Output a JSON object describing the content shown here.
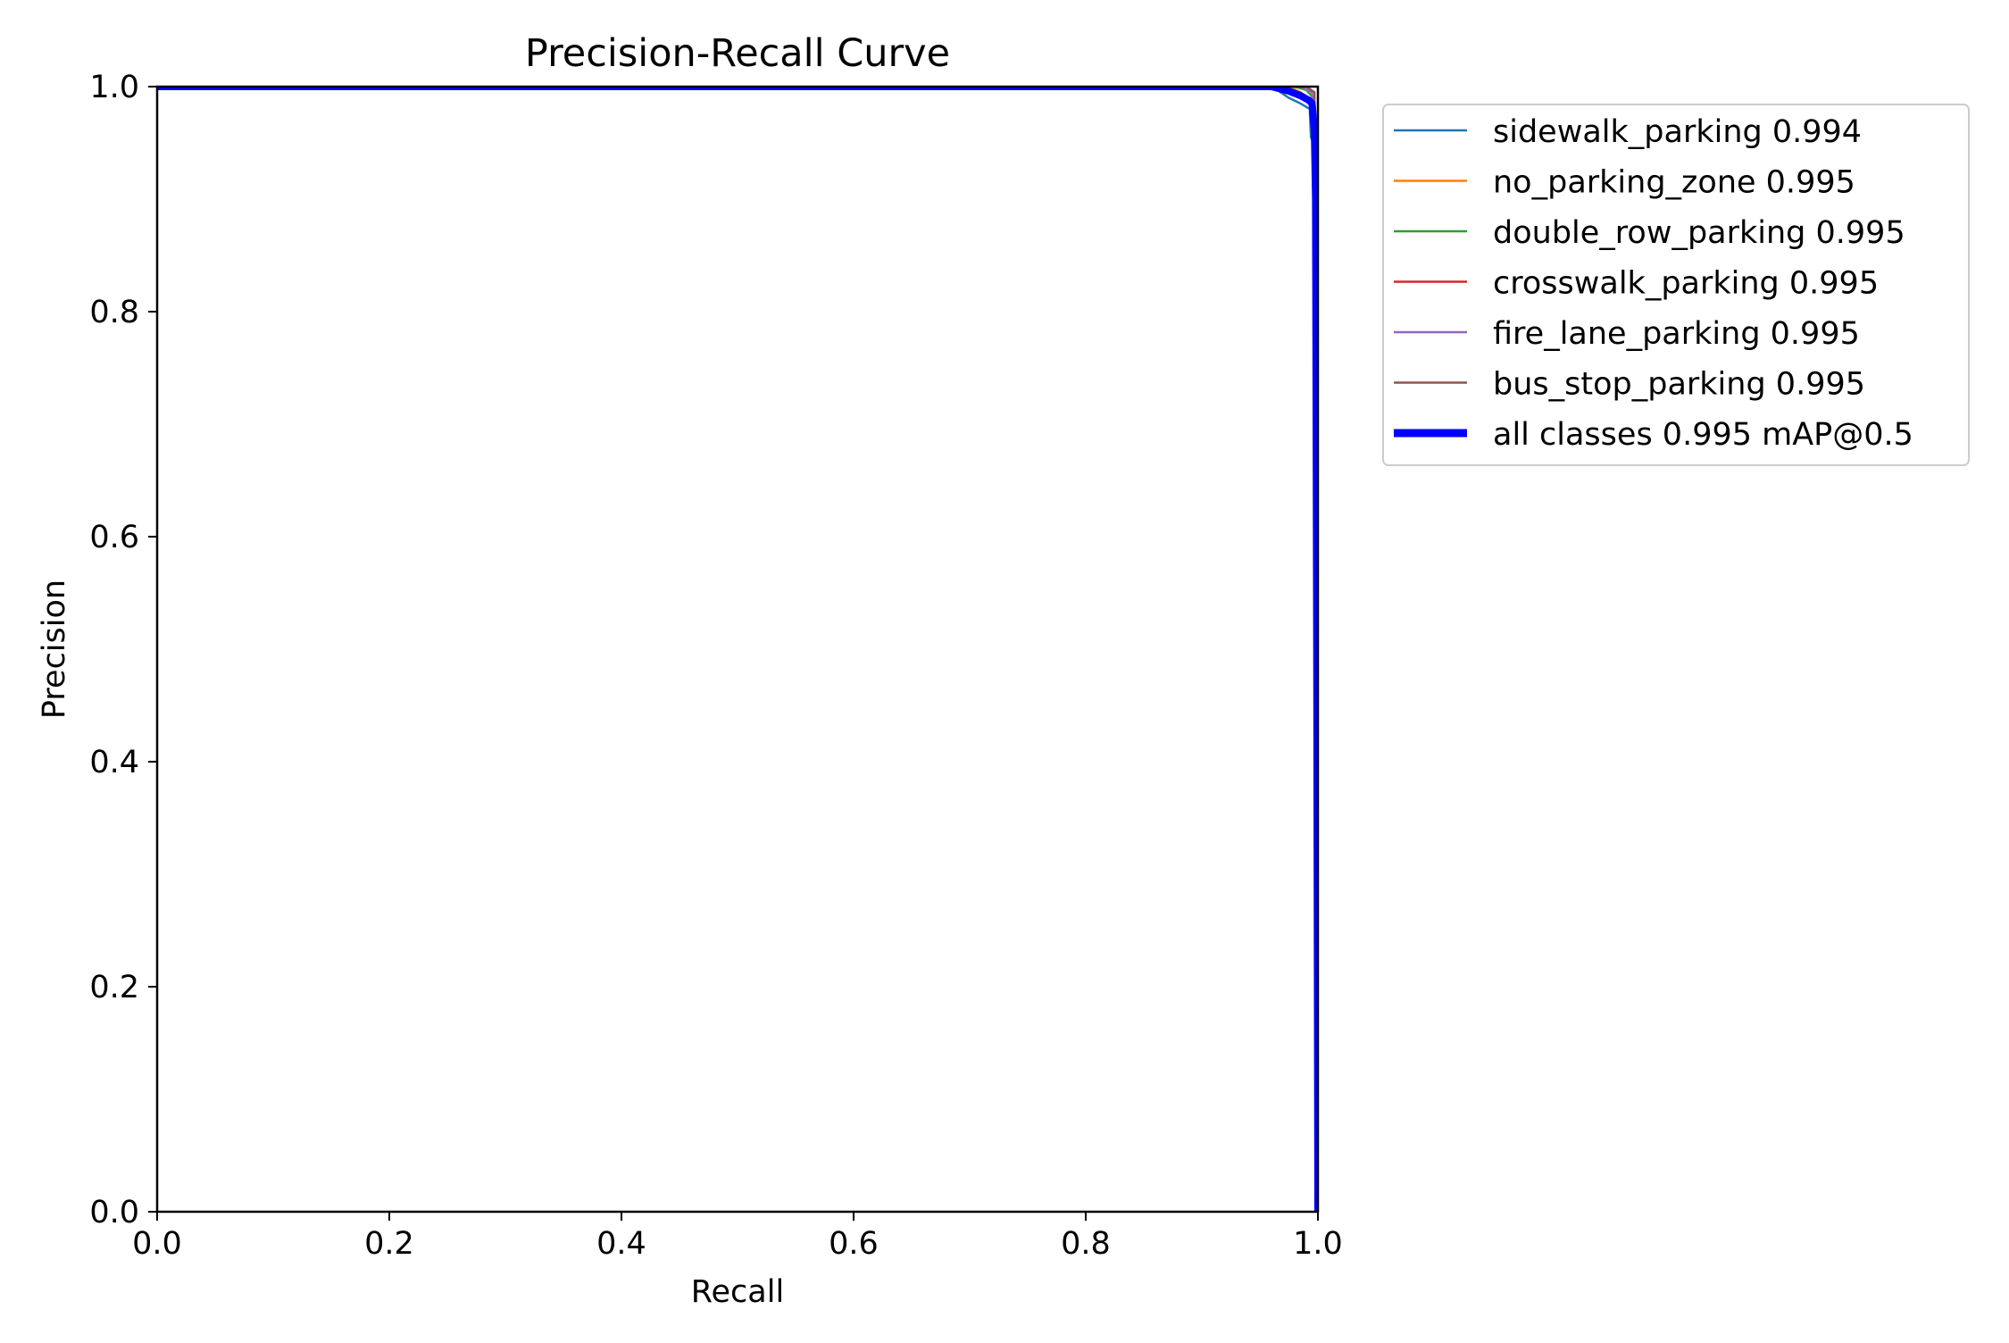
{
  "chart_data": {
    "type": "line",
    "title": "Precision-Recall Curve",
    "xlabel": "Recall",
    "ylabel": "Precision",
    "xlim": [
      0.0,
      1.0
    ],
    "ylim": [
      0.0,
      1.0
    ],
    "xticks": [
      "0.0",
      "0.2",
      "0.4",
      "0.6",
      "0.8",
      "1.0"
    ],
    "yticks": [
      "0.0",
      "0.2",
      "0.4",
      "0.6",
      "0.8",
      "1.0"
    ],
    "grid": false,
    "legend_position": "outside-upper-right",
    "series": [
      {
        "name": "sidewalk_parking 0.994",
        "color": "#1f77b4",
        "bold": false,
        "points": [
          [
            0.0,
            1.0
          ],
          [
            0.955,
            1.0
          ],
          [
            0.965,
            0.997
          ],
          [
            0.975,
            0.99
          ],
          [
            0.985,
            0.985
          ],
          [
            0.99,
            0.982
          ],
          [
            0.993,
            0.98
          ],
          [
            0.994,
            0.955
          ],
          [
            0.996,
            0.95
          ],
          [
            0.998,
            0.8
          ],
          [
            1.0,
            0.0
          ]
        ]
      },
      {
        "name": "no_parking_zone 0.995",
        "color": "#ff7f0e",
        "bold": false,
        "points": [
          [
            0.0,
            1.0
          ],
          [
            0.975,
            1.0
          ],
          [
            0.985,
            0.995
          ],
          [
            0.992,
            0.99
          ],
          [
            0.997,
            0.985
          ],
          [
            0.999,
            0.7
          ],
          [
            1.0,
            0.0
          ]
        ]
      },
      {
        "name": "double_row_parking 0.995",
        "color": "#2ca02c",
        "bold": false,
        "points": [
          [
            0.0,
            1.0
          ],
          [
            0.98,
            1.0
          ],
          [
            0.99,
            0.997
          ],
          [
            0.996,
            0.99
          ],
          [
            0.999,
            0.6
          ],
          [
            1.0,
            0.0
          ]
        ]
      },
      {
        "name": "crosswalk_parking 0.995",
        "color": "#d62728",
        "bold": false,
        "points": [
          [
            0.0,
            1.0
          ],
          [
            0.965,
            1.0
          ],
          [
            0.98,
            0.993
          ],
          [
            0.99,
            0.99
          ],
          [
            0.996,
            0.985
          ],
          [
            0.999,
            0.75
          ],
          [
            1.0,
            0.0
          ]
        ]
      },
      {
        "name": "fire_lane_parking 0.995",
        "color": "#9467bd",
        "bold": false,
        "points": [
          [
            0.0,
            1.0
          ],
          [
            0.985,
            1.0
          ],
          [
            0.995,
            0.995
          ],
          [
            0.999,
            0.65
          ],
          [
            1.0,
            0.0
          ]
        ]
      },
      {
        "name": "bus_stop_parking 0.995",
        "color": "#8c564b",
        "bold": false,
        "points": [
          [
            0.0,
            1.0
          ],
          [
            0.99,
            1.0
          ],
          [
            0.997,
            0.995
          ],
          [
            0.999,
            0.7
          ],
          [
            1.0,
            0.0
          ]
        ]
      },
      {
        "name": "all classes 0.995 mAP@0.5",
        "color": "#0000ff",
        "bold": true,
        "points": [
          [
            0.0,
            1.0
          ],
          [
            0.96,
            1.0
          ],
          [
            0.975,
            0.996
          ],
          [
            0.985,
            0.992
          ],
          [
            0.992,
            0.988
          ],
          [
            0.995,
            0.985
          ],
          [
            0.997,
            0.96
          ],
          [
            0.998,
            0.9
          ],
          [
            0.999,
            0.5
          ],
          [
            1.0,
            0.0
          ]
        ]
      }
    ]
  }
}
